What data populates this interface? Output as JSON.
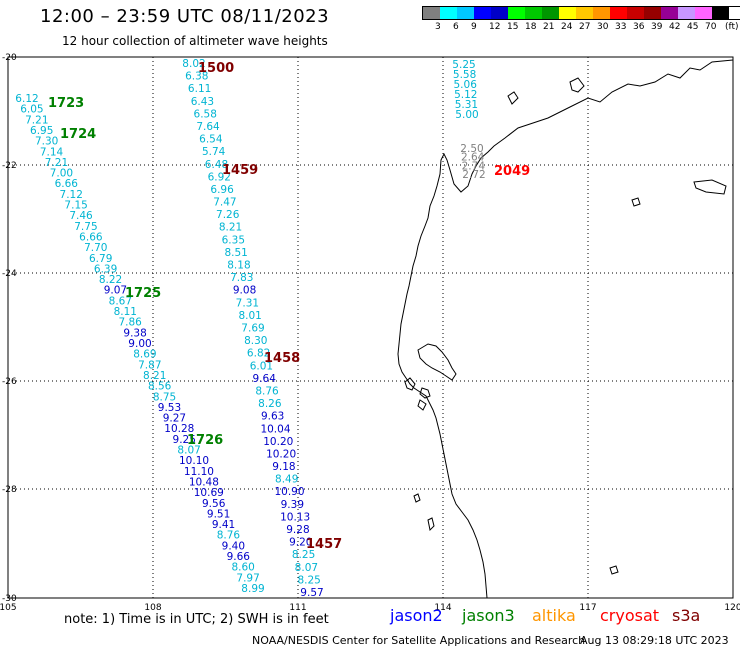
{
  "header": {
    "title": "12:00 – 23:59 UTC 08/11/2023",
    "subtitle": "12 hour collection of altimeter wave heights"
  },
  "color_scale": {
    "unit": "(ft)",
    "colors": [
      "#808080",
      "#00ffff",
      "#00c8ff",
      "#0000ff",
      "#0000c8",
      "#00ff00",
      "#00c800",
      "#009600",
      "#ffff00",
      "#ffc800",
      "#ff9600",
      "#ff0000",
      "#c80000",
      "#960000",
      "#960096",
      "#c896ff",
      "#ff64ff",
      "#000000"
    ],
    "labels": [
      "3",
      "6",
      "9",
      "12",
      "15",
      "18",
      "21",
      "24",
      "27",
      "30",
      "33",
      "36",
      "39",
      "42",
      "45",
      "70"
    ]
  },
  "map": {
    "lon_ticks": [
      "105",
      "108",
      "111",
      "114",
      "117",
      "120"
    ],
    "lat_ticks": [
      "-20",
      "-22",
      "-24",
      "-26",
      "-28",
      "-30"
    ]
  },
  "tracks": [
    {
      "x0": 194,
      "y0": 67,
      "x1": 312,
      "y1": 596,
      "values": [
        "8.02",
        "6.38",
        "6.11",
        "6.43",
        "6.58",
        "7.64",
        "6.54",
        "5.74",
        "6.48",
        "6.92",
        "6.96",
        "7.47",
        "7.26",
        "8.21",
        "6.35",
        "8.51",
        "8.18",
        "7.83",
        "9.08",
        "7.31",
        "8.01",
        "7.69",
        "8.30",
        "6.82",
        "6.01",
        "9.64",
        "8.76",
        "8.26",
        "9.63",
        "10.04",
        "10.20",
        "10.20",
        "9.18",
        "8.49",
        "10.90",
        "9.39",
        "10.13",
        "9.28",
        "9.20",
        "8.25",
        "8.07",
        "8.25",
        "9.57"
      ]
    },
    {
      "x0": 27,
      "y0": 102,
      "x1": 253,
      "y1": 592,
      "values": [
        "6.12",
        "6.05",
        "7.21",
        "6.95",
        "7.30",
        "7.14",
        "7.21",
        "7.00",
        "6.66",
        "7.12",
        "7.15",
        "7.46",
        "7.75",
        "6.66",
        "7.70",
        "6.79",
        "6.39",
        "8.22",
        "9.07",
        "8.67",
        "8.11",
        "7.86",
        "9.38",
        "9.00",
        "8.69",
        "7.87",
        "8.21",
        "8.56",
        "8.75",
        "9.53",
        "9.27",
        "10.28",
        "9.25",
        "8.07",
        "10.10",
        "11.10",
        "10.48",
        "10.69",
        "9.56",
        "9.51",
        "9.41",
        "8.76",
        "9.40",
        "9.66",
        "8.60",
        "7.97",
        "8.99"
      ]
    },
    {
      "x0": 464,
      "y0": 68,
      "x1": 467,
      "y1": 118,
      "values": [
        "5.25",
        "5.58",
        "5.06",
        "5.12",
        "5.31",
        "5.00"
      ]
    },
    {
      "x0": 472,
      "y0": 152,
      "x1": 474,
      "y1": 178,
      "values": [
        "2.50",
        "2.64",
        "2.74",
        "2.72"
      ]
    }
  ],
  "pass_labels": [
    {
      "text": "1500",
      "color": "#800000"
    },
    {
      "text": "1723",
      "color": "#008000"
    },
    {
      "text": "1724",
      "color": "#008000"
    },
    {
      "text": "1459",
      "color": "#800000"
    },
    {
      "text": "1725",
      "color": "#008000"
    },
    {
      "text": "1458",
      "color": "#800000"
    },
    {
      "text": "1726",
      "color": "#008000"
    },
    {
      "text": "1457",
      "color": "#800000"
    },
    {
      "text": "2049",
      "color": "#ff0000"
    }
  ],
  "footer": {
    "note": "note: 1) Time is in UTC; 2) SWH is in feet",
    "satellites": [
      {
        "name": "jason2",
        "color": "#0000ff"
      },
      {
        "name": "jason3",
        "color": "#008000"
      },
      {
        "name": "altika",
        "color": "#ff9600"
      },
      {
        "name": "cryosat",
        "color": "#ff0000"
      },
      {
        "name": "s3a",
        "color": "#800000"
      }
    ],
    "credit": "NOAA/NESDIS Center for Satellite Applications and Research",
    "generated": "Aug 13 08:29:18 UTC 2023"
  }
}
